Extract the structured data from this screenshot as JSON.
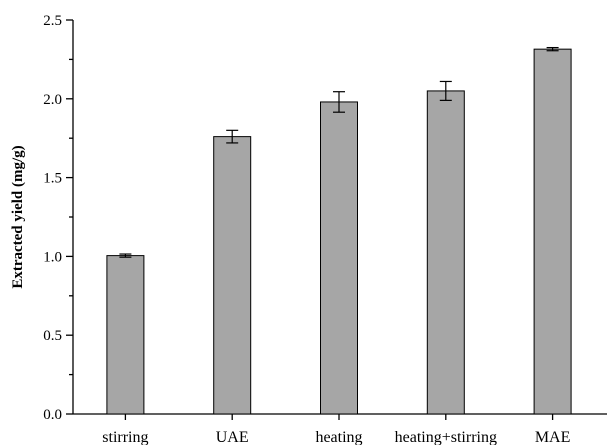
{
  "chart_data": {
    "type": "bar",
    "title": "",
    "xlabel": "",
    "ylabel": "Extracted yield (mg/g)",
    "ylim": [
      0,
      2.5
    ],
    "yticks": [
      "0.0",
      "0.5",
      "1.0",
      "1.5",
      "2.0",
      "2.5"
    ],
    "categories": [
      "stirring",
      "UAE",
      "heating",
      "heating+stirring",
      "MAE"
    ],
    "values": [
      1.005,
      1.76,
      1.98,
      2.05,
      2.315
    ],
    "errors": [
      0.01,
      0.04,
      0.065,
      0.06,
      0.01
    ],
    "bar_color": "#a6a6a6",
    "grid": false,
    "legend": "none"
  }
}
